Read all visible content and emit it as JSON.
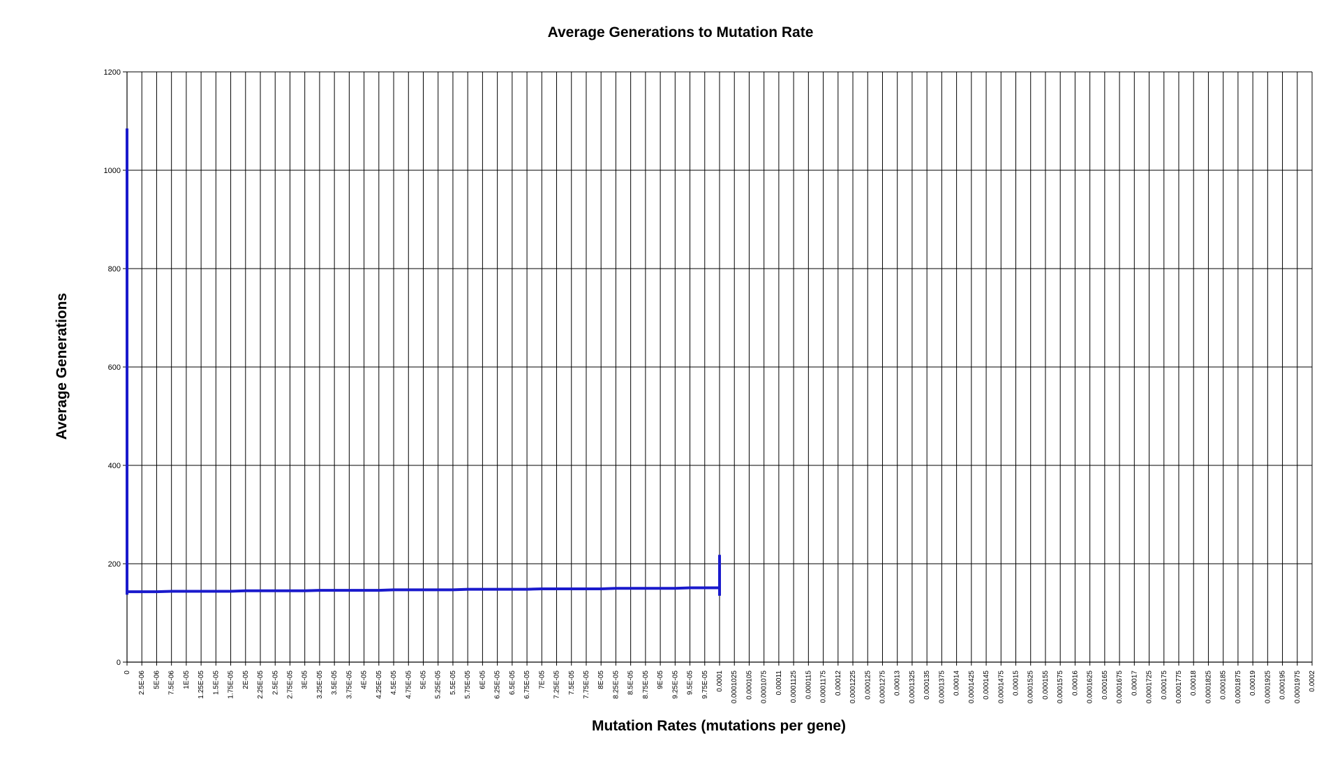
{
  "chart_data": {
    "type": "line",
    "title": "Average Generations to Mutation Rate",
    "xlabel": "Mutation Rates (mutations per gene)",
    "ylabel": "Average Generations",
    "ylim": [
      0,
      1200
    ],
    "y_ticks": [
      "0",
      "200",
      "400",
      "600",
      "800",
      "1000",
      "1200"
    ],
    "x_tick_labels": [
      "0",
      "2.5E-06",
      "5E-06",
      "7.5E-06",
      "1E-05",
      "1.25E-05",
      "1.5E-05",
      "1.75E-05",
      "2E-05",
      "2.25E-05",
      "2.5E-05",
      "2.75E-05",
      "3E-05",
      "3.25E-05",
      "3.5E-05",
      "3.75E-05",
      "4E-05",
      "4.25E-05",
      "4.5E-05",
      "4.75E-05",
      "5E-05",
      "5.25E-05",
      "5.5E-05",
      "5.75E-05",
      "6E-05",
      "6.25E-05",
      "6.5E-05",
      "6.75E-05",
      "7E-05",
      "7.25E-05",
      "7.5E-05",
      "7.75E-05",
      "8E-05",
      "8.25E-05",
      "8.5E-05",
      "8.75E-05",
      "9E-05",
      "9.25E-05",
      "9.5E-05",
      "9.75E-05",
      "0.0001",
      "0.0001025",
      "0.000105",
      "0.0001075",
      "0.00011",
      "0.0001125",
      "0.000115",
      "0.0001175",
      "0.00012",
      "0.0001225",
      "0.000125",
      "0.0001275",
      "0.00013",
      "0.0001325",
      "0.000135",
      "0.0001375",
      "0.00014",
      "0.0001425",
      "0.000145",
      "0.0001475",
      "0.00015",
      "0.0001525",
      "0.000155",
      "0.0001575",
      "0.00016",
      "0.0001625",
      "0.000165",
      "0.0001675",
      "0.00017",
      "0.0001725",
      "0.000175",
      "0.0001775",
      "0.00018",
      "0.0001825",
      "0.000185",
      "0.0001875",
      "0.00019",
      "0.0001925",
      "0.000195",
      "0.0001975",
      "0.0002"
    ],
    "xlim": [
      0,
      0.0002
    ],
    "grid": true,
    "series_color": "#1a1acc",
    "series": [
      {
        "x": [
          0,
          0,
          0,
          2.5e-06,
          5e-06,
          7.5e-06,
          1e-05,
          1.25e-05,
          1.5e-05,
          1.75e-05,
          2e-05,
          2.25e-05,
          2.5e-05,
          2.75e-05,
          3e-05,
          3.25e-05,
          3.5e-05,
          3.75e-05,
          4e-05,
          4.25e-05,
          4.5e-05,
          4.75e-05,
          5e-05,
          5.25e-05,
          5.5e-05,
          5.75e-05,
          6e-05,
          6.25e-05,
          6.5e-05,
          6.75e-05,
          7e-05,
          7.25e-05,
          7.5e-05,
          7.75e-05,
          8e-05,
          8.25e-05,
          8.5e-05,
          8.75e-05,
          9e-05,
          9.25e-05,
          9.5e-05,
          9.75e-05,
          0.0001,
          0.0001,
          0.0001
        ],
        "values": [
          137,
          1085,
          143,
          143,
          143,
          144,
          144,
          144,
          144,
          144,
          145,
          145,
          145,
          145,
          145,
          146,
          146,
          146,
          146,
          146,
          147,
          147,
          147,
          147,
          147,
          148,
          148,
          148,
          148,
          148,
          149,
          149,
          149,
          149,
          149,
          150,
          150,
          150,
          150,
          150,
          151,
          151,
          151,
          135,
          218
        ]
      }
    ]
  }
}
